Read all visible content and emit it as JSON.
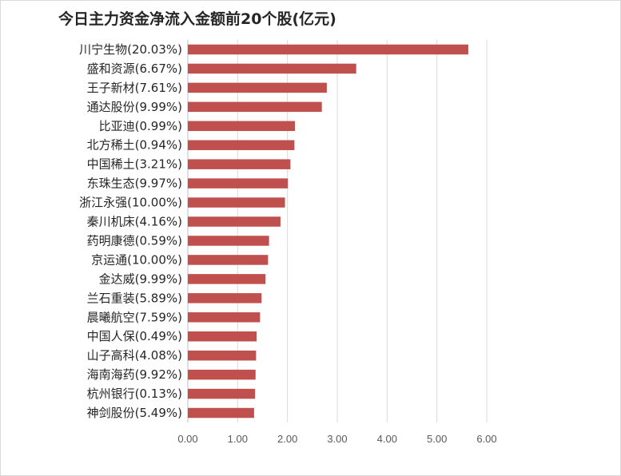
{
  "chart_data": {
    "type": "bar",
    "orientation": "horizontal",
    "title": "今日主力资金净流入金额前20个股(亿元)",
    "categories": [
      "川宁生物(20.03%)",
      "盛和资源(6.67%)",
      "王子新材(7.61%)",
      "通达股份(9.99%)",
      "比亚迪(0.99%)",
      "北方稀土(0.94%)",
      "中国稀土(3.21%)",
      "东珠生态(9.97%)",
      "浙江永强(10.00%)",
      "秦川机床(4.16%)",
      "药明康德(0.59%)",
      "京运通(10.00%)",
      "金达威(9.99%)",
      "兰石重装(5.89%)",
      "晨曦航空(7.59%)",
      "中国人保(0.49%)",
      "山子高科(4.08%)",
      "海南海药(9.92%)",
      "杭州银行(0.13%)",
      "神剑股份(5.49%)"
    ],
    "values": [
      5.63,
      3.38,
      2.79,
      2.69,
      2.15,
      2.14,
      2.06,
      2.01,
      1.95,
      1.86,
      1.63,
      1.61,
      1.56,
      1.48,
      1.45,
      1.38,
      1.37,
      1.36,
      1.35,
      1.33
    ],
    "xlim": [
      0,
      6
    ],
    "xticks": [
      "0.00",
      "1.00",
      "2.00",
      "3.00",
      "4.00",
      "5.00",
      "6.00"
    ],
    "xlabel": "",
    "ylabel": "",
    "grid": "vertical",
    "legend": "none",
    "bar_color": "#c0504d",
    "grid_color": "#d9d9d9"
  }
}
